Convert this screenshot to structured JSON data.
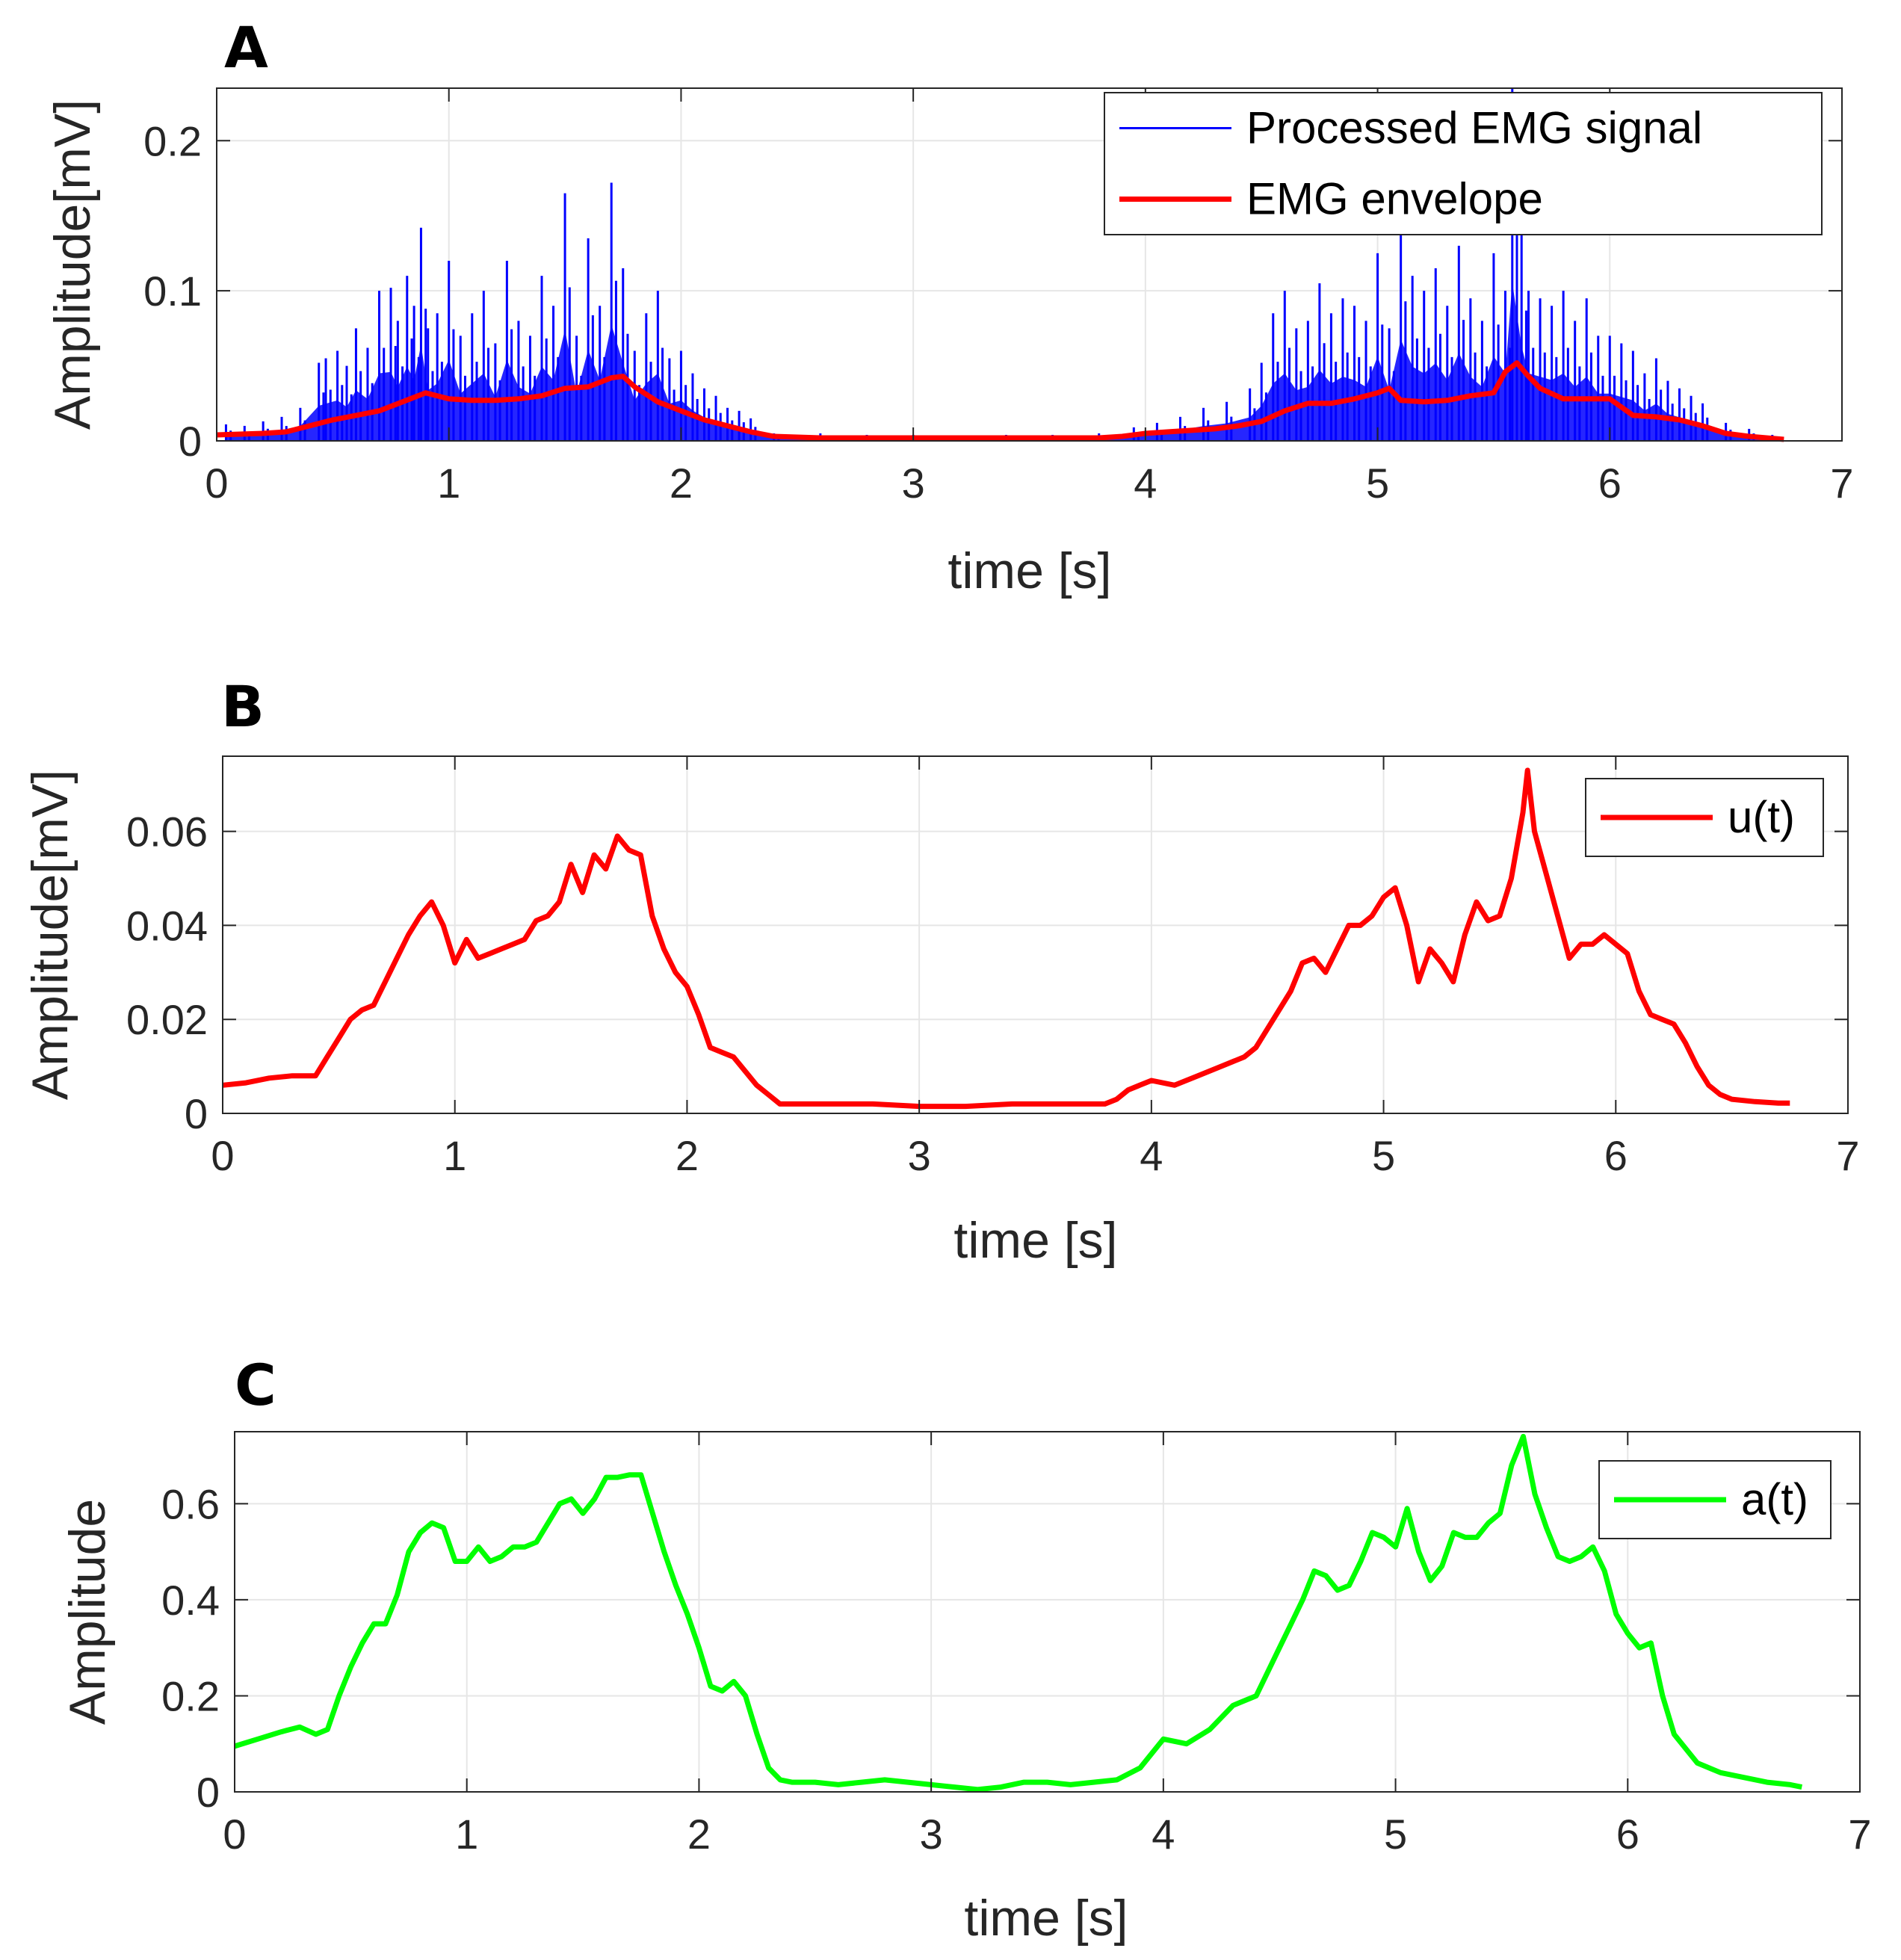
{
  "chart_data": [
    {
      "panel": "A",
      "type": "line",
      "title": "",
      "xlabel": "time [s]",
      "ylabel": "Amplitude[mV]",
      "xlim": [
        0,
        7
      ],
      "ylim": [
        0,
        0.235
      ],
      "xticks": [
        0,
        1,
        2,
        3,
        4,
        5,
        6,
        7
      ],
      "yticks": [
        0,
        0.1,
        0.2
      ],
      "grid": true,
      "legend": "top-right",
      "raw_signal": {
        "name": "Processed EMG signal",
        "color": "#0000ff",
        "t": [
          0.04,
          0.12,
          0.2,
          0.28,
          0.36,
          0.44,
          0.47,
          0.52,
          0.56,
          0.6,
          0.65,
          0.7,
          0.75,
          0.78,
          0.82,
          0.85,
          0.88,
          0.91,
          0.95,
          1.0,
          1.05,
          1.1,
          1.15,
          1.2,
          1.25,
          1.3,
          1.35,
          1.4,
          1.45,
          1.5,
          1.55,
          1.6,
          1.65,
          1.7,
          1.75,
          1.8,
          1.85,
          1.9,
          1.95,
          2.0,
          2.05,
          2.1,
          2.15,
          2.2,
          2.25,
          2.3,
          2.4,
          2.6,
          2.8,
          3.0,
          3.2,
          3.4,
          3.6,
          3.8,
          3.95,
          4.05,
          4.15,
          4.25,
          4.35,
          4.45,
          4.5,
          4.55,
          4.6,
          4.65,
          4.7,
          4.75,
          4.8,
          4.85,
          4.9,
          4.95,
          5.0,
          5.05,
          5.1,
          5.15,
          5.2,
          5.25,
          5.3,
          5.35,
          5.4,
          5.45,
          5.5,
          5.55,
          5.58,
          5.62,
          5.65,
          5.7,
          5.75,
          5.8,
          5.85,
          5.9,
          5.95,
          6.0,
          6.05,
          6.1,
          6.15,
          6.2,
          6.25,
          6.3,
          6.35,
          6.4,
          6.5,
          6.6,
          6.7
        ],
        "peaks": [
          0.011,
          0.01,
          0.013,
          0.016,
          0.022,
          0.052,
          0.055,
          0.06,
          0.05,
          0.075,
          0.062,
          0.1,
          0.102,
          0.08,
          0.11,
          0.09,
          0.142,
          0.075,
          0.085,
          0.12,
          0.07,
          0.085,
          0.1,
          0.065,
          0.12,
          0.08,
          0.07,
          0.11,
          0.09,
          0.165,
          0.07,
          0.135,
          0.09,
          0.172,
          0.115,
          0.06,
          0.085,
          0.1,
          0.055,
          0.06,
          0.045,
          0.035,
          0.03,
          0.022,
          0.02,
          0.015,
          0.005,
          0.005,
          0.004,
          0.004,
          0.003,
          0.004,
          0.004,
          0.005,
          0.009,
          0.012,
          0.016,
          0.022,
          0.026,
          0.035,
          0.052,
          0.085,
          0.1,
          0.075,
          0.08,
          0.105,
          0.085,
          0.095,
          0.09,
          0.08,
          0.125,
          0.075,
          0.15,
          0.11,
          0.1,
          0.115,
          0.09,
          0.13,
          0.095,
          0.08,
          0.125,
          0.1,
          0.235,
          0.14,
          0.1,
          0.095,
          0.09,
          0.1,
          0.08,
          0.095,
          0.07,
          0.07,
          0.065,
          0.06,
          0.045,
          0.055,
          0.04,
          0.035,
          0.03,
          0.025,
          0.012,
          0.008,
          0.004
        ]
      },
      "series": [
        {
          "name": "EMG envelope",
          "color": "#ff0000",
          "x": [
            0,
            0.2,
            0.3,
            0.4,
            0.5,
            0.6,
            0.7,
            0.8,
            0.9,
            1.0,
            1.1,
            1.2,
            1.3,
            1.4,
            1.5,
            1.6,
            1.7,
            1.75,
            1.8,
            1.9,
            2.0,
            2.1,
            2.2,
            2.3,
            2.4,
            2.6,
            2.8,
            3.0,
            3.2,
            3.4,
            3.6,
            3.8,
            3.9,
            4.0,
            4.1,
            4.2,
            4.3,
            4.4,
            4.5,
            4.6,
            4.7,
            4.8,
            4.9,
            5.0,
            5.05,
            5.1,
            5.2,
            5.3,
            5.4,
            5.5,
            5.55,
            5.6,
            5.65,
            5.7,
            5.8,
            5.9,
            6.0,
            6.1,
            6.2,
            6.3,
            6.4,
            6.5,
            6.6,
            6.75
          ],
          "y": [
            0.004,
            0.005,
            0.006,
            0.01,
            0.014,
            0.017,
            0.02,
            0.026,
            0.032,
            0.028,
            0.027,
            0.027,
            0.028,
            0.03,
            0.035,
            0.036,
            0.042,
            0.043,
            0.036,
            0.026,
            0.02,
            0.014,
            0.01,
            0.006,
            0.003,
            0.002,
            0.002,
            0.002,
            0.002,
            0.002,
            0.002,
            0.002,
            0.003,
            0.005,
            0.006,
            0.007,
            0.008,
            0.01,
            0.013,
            0.02,
            0.025,
            0.025,
            0.028,
            0.032,
            0.035,
            0.027,
            0.026,
            0.027,
            0.03,
            0.032,
            0.046,
            0.052,
            0.043,
            0.035,
            0.028,
            0.028,
            0.028,
            0.017,
            0.016,
            0.014,
            0.01,
            0.005,
            0.003,
            0.001
          ]
        }
      ]
    },
    {
      "panel": "B",
      "type": "line",
      "title": "",
      "xlabel": "time [s]",
      "ylabel": "Amplitude[mV]",
      "xlim": [
        0,
        7
      ],
      "ylim": [
        0,
        0.076
      ],
      "xticks": [
        0,
        1,
        2,
        3,
        4,
        5,
        6,
        7
      ],
      "yticks": [
        0,
        0.02,
        0.04,
        0.06
      ],
      "grid": true,
      "legend": "top-right",
      "series": [
        {
          "name": "u(t)",
          "color": "#ff0000",
          "x": [
            0,
            0.1,
            0.2,
            0.3,
            0.4,
            0.45,
            0.5,
            0.55,
            0.6,
            0.65,
            0.7,
            0.75,
            0.8,
            0.85,
            0.9,
            0.95,
            1.0,
            1.05,
            1.1,
            1.15,
            1.2,
            1.25,
            1.3,
            1.35,
            1.4,
            1.45,
            1.5,
            1.55,
            1.6,
            1.65,
            1.7,
            1.75,
            1.8,
            1.85,
            1.9,
            1.95,
            2.0,
            2.05,
            2.1,
            2.15,
            2.2,
            2.25,
            2.3,
            2.35,
            2.4,
            2.6,
            2.8,
            3.0,
            3.2,
            3.4,
            3.6,
            3.8,
            3.85,
            3.9,
            3.95,
            4.0,
            4.1,
            4.2,
            4.3,
            4.4,
            4.45,
            4.5,
            4.55,
            4.6,
            4.65,
            4.7,
            4.75,
            4.8,
            4.85,
            4.9,
            4.95,
            5.0,
            5.05,
            5.1,
            5.15,
            5.2,
            5.25,
            5.3,
            5.35,
            5.4,
            5.45,
            5.5,
            5.55,
            5.6,
            5.62,
            5.65,
            5.7,
            5.75,
            5.8,
            5.85,
            5.9,
            5.95,
            6.0,
            6.05,
            6.1,
            6.15,
            6.2,
            6.25,
            6.3,
            6.35,
            6.4,
            6.45,
            6.5,
            6.6,
            6.7,
            6.75
          ],
          "y": [
            0.006,
            0.0065,
            0.0075,
            0.008,
            0.008,
            0.012,
            0.016,
            0.02,
            0.022,
            0.023,
            0.028,
            0.033,
            0.038,
            0.042,
            0.045,
            0.04,
            0.032,
            0.037,
            0.033,
            0.034,
            0.035,
            0.036,
            0.037,
            0.041,
            0.042,
            0.045,
            0.053,
            0.047,
            0.055,
            0.052,
            0.059,
            0.056,
            0.055,
            0.042,
            0.035,
            0.03,
            0.027,
            0.021,
            0.014,
            0.013,
            0.012,
            0.009,
            0.006,
            0.004,
            0.002,
            0.002,
            0.002,
            0.0015,
            0.0015,
            0.002,
            0.002,
            0.002,
            0.003,
            0.005,
            0.006,
            0.007,
            0.006,
            0.008,
            0.01,
            0.012,
            0.014,
            0.018,
            0.022,
            0.026,
            0.032,
            0.033,
            0.03,
            0.035,
            0.04,
            0.04,
            0.042,
            0.046,
            0.048,
            0.04,
            0.028,
            0.035,
            0.032,
            0.028,
            0.038,
            0.045,
            0.041,
            0.042,
            0.05,
            0.064,
            0.073,
            0.06,
            0.051,
            0.042,
            0.033,
            0.036,
            0.036,
            0.038,
            0.036,
            0.034,
            0.026,
            0.021,
            0.02,
            0.019,
            0.015,
            0.01,
            0.006,
            0.004,
            0.003,
            0.0025,
            0.0022,
            0.0022
          ]
        }
      ]
    },
    {
      "panel": "C",
      "type": "line",
      "title": "",
      "xlabel": "time [s]",
      "ylabel": "Amplitude",
      "xlim": [
        0,
        7
      ],
      "ylim": [
        0,
        0.75
      ],
      "xticks": [
        0,
        1,
        2,
        3,
        4,
        5,
        6,
        7
      ],
      "yticks": [
        0,
        0.2,
        0.4,
        0.6
      ],
      "grid": true,
      "legend": "top-right",
      "series": [
        {
          "name": "a(t)",
          "color": "#00ff00",
          "x": [
            0,
            0.1,
            0.2,
            0.28,
            0.35,
            0.4,
            0.45,
            0.5,
            0.55,
            0.6,
            0.65,
            0.7,
            0.75,
            0.8,
            0.85,
            0.9,
            0.95,
            1.0,
            1.05,
            1.1,
            1.15,
            1.2,
            1.25,
            1.3,
            1.35,
            1.4,
            1.45,
            1.5,
            1.55,
            1.6,
            1.65,
            1.7,
            1.75,
            1.8,
            1.85,
            1.9,
            1.95,
            2.0,
            2.05,
            2.1,
            2.15,
            2.2,
            2.25,
            2.3,
            2.35,
            2.4,
            2.5,
            2.6,
            2.7,
            2.8,
            2.9,
            3.0,
            3.1,
            3.2,
            3.3,
            3.4,
            3.5,
            3.6,
            3.7,
            3.8,
            3.9,
            4.0,
            4.1,
            4.2,
            4.3,
            4.4,
            4.5,
            4.55,
            4.6,
            4.65,
            4.7,
            4.75,
            4.8,
            4.85,
            4.9,
            4.95,
            5.0,
            5.05,
            5.1,
            5.15,
            5.2,
            5.25,
            5.3,
            5.35,
            5.4,
            5.45,
            5.5,
            5.55,
            5.6,
            5.65,
            5.7,
            5.75,
            5.8,
            5.85,
            5.9,
            5.95,
            6.0,
            6.05,
            6.1,
            6.15,
            6.2,
            6.3,
            6.4,
            6.5,
            6.6,
            6.7,
            6.75
          ],
          "y": [
            0.095,
            0.11,
            0.125,
            0.135,
            0.12,
            0.13,
            0.2,
            0.26,
            0.31,
            0.35,
            0.35,
            0.41,
            0.5,
            0.54,
            0.56,
            0.55,
            0.48,
            0.48,
            0.51,
            0.48,
            0.49,
            0.51,
            0.51,
            0.52,
            0.56,
            0.6,
            0.61,
            0.58,
            0.61,
            0.655,
            0.655,
            0.66,
            0.66,
            0.58,
            0.5,
            0.43,
            0.37,
            0.3,
            0.22,
            0.21,
            0.23,
            0.2,
            0.12,
            0.05,
            0.025,
            0.02,
            0.02,
            0.015,
            0.02,
            0.025,
            0.02,
            0.015,
            0.01,
            0.005,
            0.01,
            0.02,
            0.02,
            0.015,
            0.02,
            0.025,
            0.05,
            0.11,
            0.1,
            0.13,
            0.18,
            0.2,
            0.3,
            0.35,
            0.4,
            0.46,
            0.45,
            0.42,
            0.43,
            0.48,
            0.54,
            0.53,
            0.51,
            0.59,
            0.5,
            0.44,
            0.47,
            0.54,
            0.53,
            0.53,
            0.56,
            0.58,
            0.68,
            0.74,
            0.62,
            0.55,
            0.49,
            0.48,
            0.49,
            0.51,
            0.46,
            0.37,
            0.33,
            0.3,
            0.31,
            0.2,
            0.12,
            0.06,
            0.04,
            0.03,
            0.02,
            0.015,
            0.01
          ]
        }
      ]
    }
  ]
}
